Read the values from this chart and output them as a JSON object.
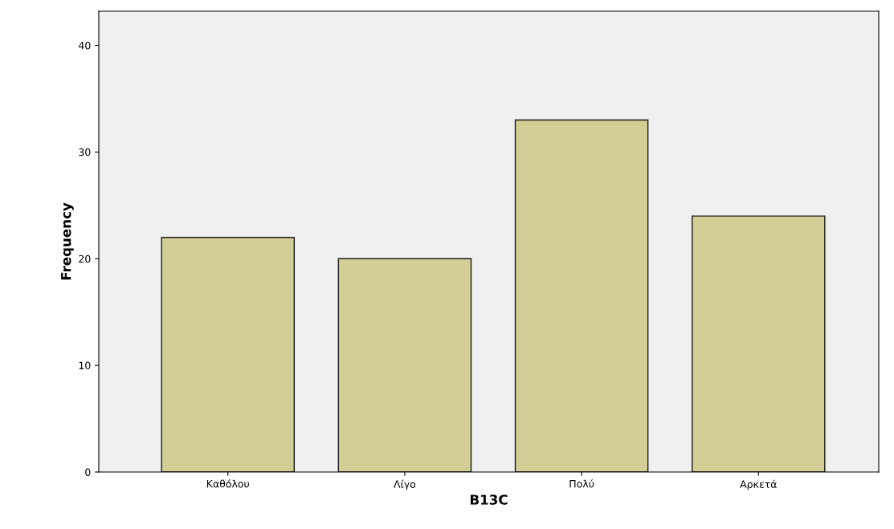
{
  "chart_data": {
    "type": "bar",
    "xlabel": "B13C",
    "ylabel": "Frequency",
    "categories": [
      "Καθόλου",
      "Λίγο",
      "Πολύ",
      "Αρκετά"
    ],
    "values": [
      22,
      20,
      33,
      24
    ],
    "color": "#d3ce96",
    "ylim": [
      0,
      43.2
    ],
    "yticks": [
      0,
      10,
      20,
      30,
      40
    ],
    "grid": false
  }
}
